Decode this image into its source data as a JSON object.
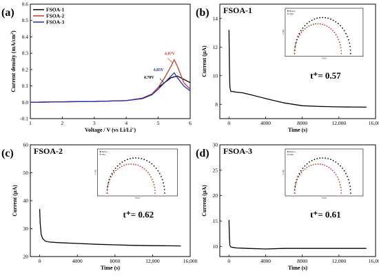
{
  "chart_data": [
    {
      "panel_label": "(a)",
      "type": "line",
      "xlabel": "Voltage / V (vs Li/Li",
      "xlabel_sup": "+",
      "xlabel_end": ")",
      "ylabel": "Current density (mA/cm",
      "ylabel_sup": "2",
      "ylabel_end": ")",
      "xlim": [
        1,
        6
      ],
      "ylim": [
        -0.1,
        0.6
      ],
      "xticks": [
        "1",
        "2",
        "3",
        "4",
        "5",
        "6"
      ],
      "yticks": [
        "-0.1",
        "0.0",
        "0.1",
        "0.2",
        "0.3",
        "0.4",
        "0.5",
        "0.6"
      ],
      "legend_position": "top-left",
      "series": [
        {
          "name": "FSOA-1",
          "color": "#000000",
          "x": [
            1,
            2,
            3,
            4,
            4.5,
            4.8,
            5.0,
            5.2,
            5.4,
            5.6,
            5.8,
            6.0
          ],
          "y": [
            0.0,
            0.003,
            0.005,
            0.01,
            0.025,
            0.05,
            0.09,
            0.12,
            0.15,
            0.16,
            0.14,
            0.12
          ]
        },
        {
          "name": "FSOA-2",
          "color": "#c0392b",
          "x": [
            1,
            2,
            3,
            4,
            4.5,
            4.8,
            5.0,
            5.2,
            5.4,
            5.5,
            5.6,
            5.8,
            6.0
          ],
          "y": [
            0.0,
            0.003,
            0.005,
            0.01,
            0.025,
            0.05,
            0.09,
            0.15,
            0.22,
            0.26,
            0.22,
            0.12,
            0.08
          ]
        },
        {
          "name": "FSOA-3",
          "color": "#1f2fbf",
          "x": [
            1,
            2,
            3,
            4,
            4.5,
            4.8,
            5.0,
            5.2,
            5.4,
            5.5,
            5.6,
            5.8,
            6.0
          ],
          "y": [
            0.0,
            0.003,
            0.005,
            0.01,
            0.022,
            0.045,
            0.08,
            0.12,
            0.16,
            0.18,
            0.15,
            0.1,
            0.07
          ]
        }
      ],
      "annotations": [
        {
          "text": "4.87V",
          "x": 5.2,
          "y": 0.29,
          "color": "#c0392b"
        },
        {
          "text": "4.85V",
          "x": 4.85,
          "y": 0.19,
          "color": "#1f2fbf"
        },
        {
          "text": "4.78V",
          "x": 4.55,
          "y": 0.145,
          "color": "#000000"
        }
      ]
    },
    {
      "panel_label": "(b)",
      "title": "FSOA-1",
      "type": "line",
      "xlabel": "Time (s)",
      "ylabel": "Current (μA)",
      "xlim": [
        -1000,
        16000
      ],
      "ylim": [
        7,
        15
      ],
      "xticks": [
        "0",
        "4000",
        "8000",
        "12,000",
        "16,000"
      ],
      "yticks": [
        "8",
        "10",
        "12",
        "14"
      ],
      "t_plus": "t⁺= 0.57",
      "series": [
        {
          "name": "",
          "color": "#000000",
          "x": [
            0,
            50,
            100,
            200,
            400,
            800,
            1500,
            2500,
            4000,
            6000,
            8000,
            10000,
            12000,
            15000
          ],
          "y": [
            13.2,
            10.5,
            9.2,
            8.9,
            8.9,
            8.85,
            8.8,
            8.65,
            8.4,
            8.1,
            7.9,
            7.85,
            7.82,
            7.8
          ]
        }
      ]
    },
    {
      "panel_label": "(c)",
      "title": "FSOA-2",
      "type": "line",
      "xlabel": "Time (s)",
      "ylabel": "Current (μA)",
      "xlim": [
        -1000,
        16000
      ],
      "ylim": [
        20,
        60
      ],
      "xticks": [
        "0",
        "4000",
        "8000",
        "12,000",
        "16,000"
      ],
      "yticks": [
        "20",
        "30",
        "40",
        "50",
        "60"
      ],
      "t_plus": "t⁺= 0.62",
      "series": [
        {
          "name": "",
          "color": "#000000",
          "x": [
            0,
            50,
            150,
            300,
            600,
            1000,
            2000,
            4000,
            6000,
            8000,
            10000,
            12000,
            15000
          ],
          "y": [
            37,
            32,
            28,
            26.5,
            25.5,
            25.2,
            25,
            24.7,
            24.4,
            24.2,
            24,
            23.9,
            23.8
          ]
        }
      ]
    },
    {
      "panel_label": "(d)",
      "title": "FSOA-3",
      "type": "line",
      "xlabel": "Time (s)",
      "ylabel": "Current (μA)",
      "xlim": [
        -1000,
        16000
      ],
      "ylim": [
        8,
        30
      ],
      "xticks": [
        "0",
        "4000",
        "8000",
        "12,000",
        "16,000"
      ],
      "yticks": [
        "10",
        "15",
        "20",
        "25",
        "30"
      ],
      "t_plus": "t⁺= 0.61",
      "series": [
        {
          "name": "",
          "color": "#000000",
          "x": [
            0,
            50,
            100,
            200,
            400,
            800,
            2000,
            4000,
            6000,
            8000,
            10000,
            12000,
            15000
          ],
          "y": [
            15.2,
            11.5,
            10.2,
            9.9,
            9.8,
            9.7,
            9.6,
            9.5,
            9.6,
            9.6,
            9.6,
            9.6,
            9.6
          ]
        }
      ]
    }
  ],
  "insets": {
    "xlabel": "Z′(Ω)",
    "ylabel": "-Z″(Ω)",
    "legend": [
      "Before",
      "After"
    ],
    "colors": {
      "before": "#000000",
      "after": "#c0392b"
    }
  }
}
